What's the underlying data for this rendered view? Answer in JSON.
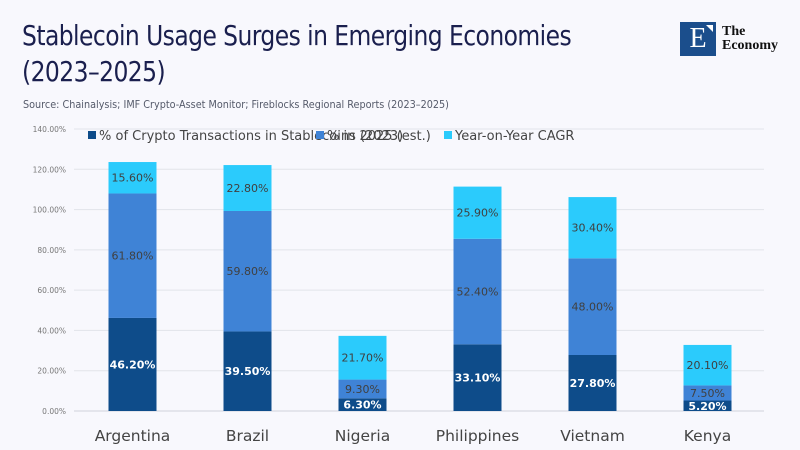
{
  "header": {
    "title_line1": "Stablecoin Usage Surges in Emerging Economies",
    "title_line2": "(2023–2025)",
    "source": "Source:  Chainalysis; IMF Crypto-Asset Monitor; Fireblocks Regional Reports (2023–2025)"
  },
  "logo": {
    "letter": "E",
    "line1": "The",
    "line2": "Economy",
    "color": "#1B4E8C"
  },
  "chart_data": {
    "type": "bar",
    "stacked": true,
    "title": "Stablecoin Usage Surges in Emerging Economies (2023–2025)",
    "xlabel": "",
    "ylabel": "",
    "categories": [
      "Argentina",
      "Brazil",
      "Nigeria",
      "Philippines",
      "Vietnam",
      "Kenya"
    ],
    "series": [
      {
        "name": "% of Crypto Transactions in Stablecoins (2023)",
        "color": "#0E4C8A",
        "label_color": "#FFFFFF",
        "label_bold": true,
        "values": [
          46.2,
          39.5,
          6.3,
          33.1,
          27.8,
          5.2
        ],
        "labels": [
          "46.20%",
          "39.50%",
          "6.30%",
          "33.10%",
          "27.80%",
          "5.20%"
        ]
      },
      {
        "name": "% in 2025 (est.)",
        "color": "#3F83D6",
        "label_color": "#404040",
        "label_bold": false,
        "values": [
          61.8,
          59.8,
          9.3,
          52.4,
          48.0,
          7.5
        ],
        "labels": [
          "61.80%",
          "59.80%",
          "9.30%",
          "52.40%",
          "48.00%",
          "7.50%"
        ]
      },
      {
        "name": "Year-on-Year CAGR",
        "color": "#2BCBFC",
        "label_color": "#404040",
        "label_bold": false,
        "values": [
          15.6,
          22.8,
          21.7,
          25.9,
          30.4,
          20.1
        ],
        "labels": [
          "15.60%",
          "22.80%",
          "21.70%",
          "25.90%",
          "30.40%",
          "20.10%"
        ]
      }
    ],
    "ylim": [
      0,
      140
    ],
    "yticks": [
      0,
      20,
      40,
      60,
      80,
      100,
      120,
      140
    ],
    "ytick_labels": [
      "0.00%",
      "20.00%",
      "40.00%",
      "60.00%",
      "80.00%",
      "100.00%",
      "120.00%",
      "140.00%"
    ],
    "grid": true,
    "legend_position": "top"
  }
}
